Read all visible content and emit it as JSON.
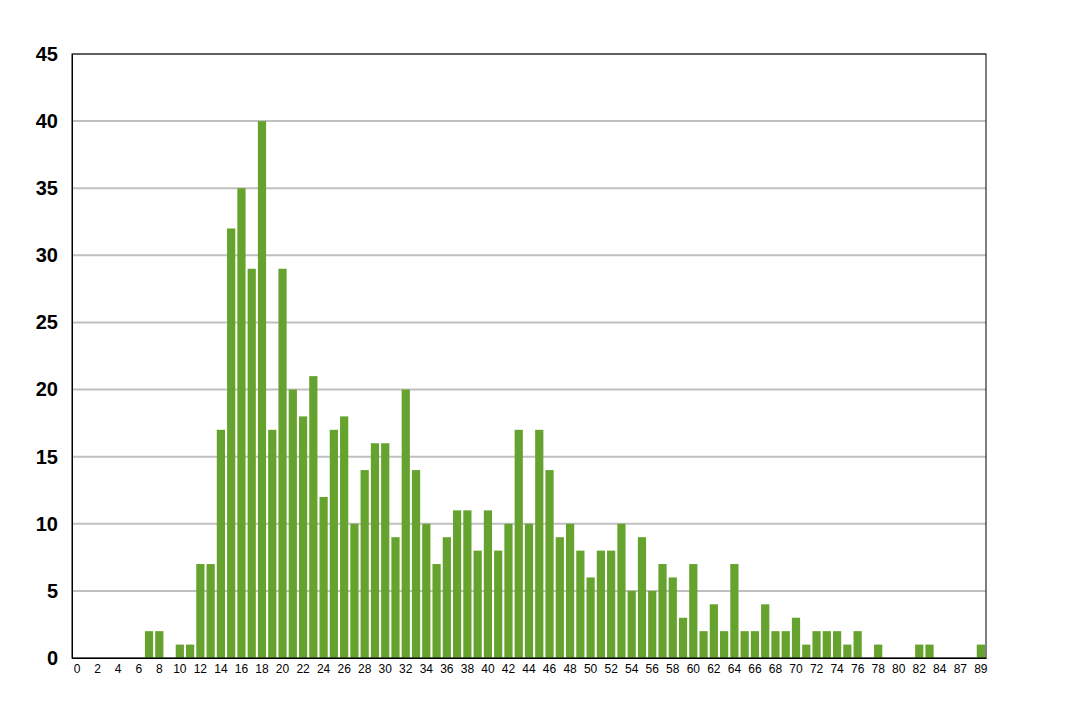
{
  "chart_data": {
    "type": "bar",
    "categories": [
      "0",
      null,
      "2",
      null,
      "4",
      null,
      "6",
      null,
      "8",
      null,
      "10",
      null,
      "12",
      null,
      "14",
      null,
      "16",
      null,
      "18",
      null,
      "20",
      null,
      "22",
      null,
      "24",
      null,
      "26",
      null,
      "28",
      null,
      "30",
      null,
      "32",
      null,
      "34",
      null,
      "36",
      null,
      "38",
      null,
      "40",
      null,
      "42",
      null,
      "44",
      null,
      "46",
      null,
      "48",
      null,
      "50",
      null,
      "52",
      null,
      "54",
      null,
      "56",
      null,
      "58",
      null,
      "60",
      null,
      "62",
      null,
      "64",
      null,
      "66",
      null,
      "68",
      null,
      "70",
      null,
      "72",
      null,
      "74",
      null,
      "76",
      null,
      "78",
      null,
      "80",
      null,
      "82",
      null,
      "84",
      null,
      "87",
      null,
      "89"
    ],
    "values": [
      0,
      0,
      0,
      0,
      0,
      0,
      0,
      2,
      2,
      0,
      1,
      1,
      7,
      7,
      17,
      32,
      35,
      29,
      40,
      17,
      29,
      20,
      18,
      21,
      12,
      17,
      18,
      10,
      14,
      16,
      16,
      9,
      20,
      14,
      10,
      7,
      9,
      11,
      11,
      8,
      11,
      8,
      10,
      17,
      10,
      17,
      14,
      9,
      10,
      8,
      6,
      8,
      8,
      10,
      5,
      9,
      5,
      7,
      6,
      3,
      7,
      2,
      4,
      2,
      7,
      2,
      2,
      4,
      2,
      2,
      3,
      1,
      2,
      2,
      2,
      1,
      2,
      0,
      1,
      0,
      0,
      0,
      1,
      1,
      0,
      0,
      0,
      0,
      1
    ],
    "color": "#66a32e",
    "ylim": [
      0,
      45
    ],
    "yticks": [
      0,
      5,
      10,
      15,
      20,
      25,
      30,
      35,
      40,
      45
    ],
    "grid": true
  }
}
